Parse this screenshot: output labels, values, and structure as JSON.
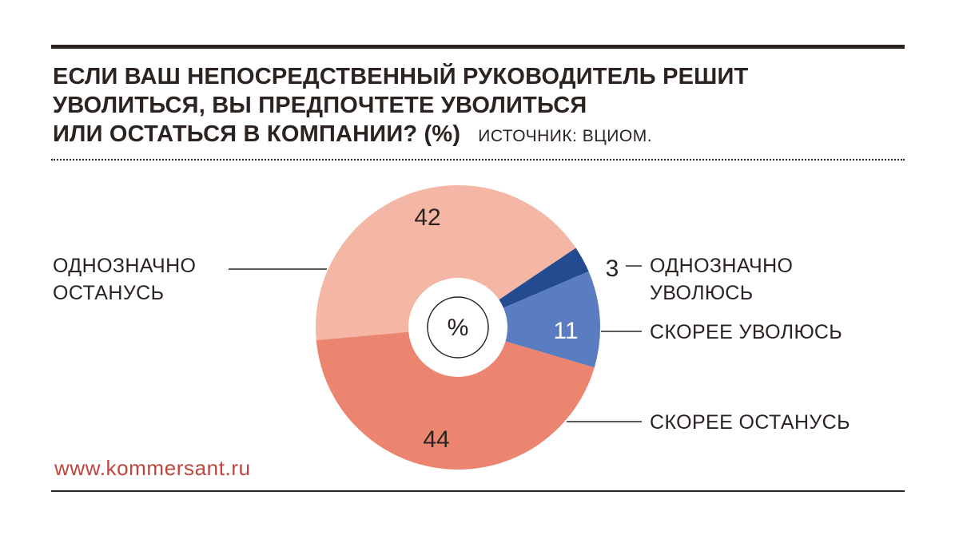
{
  "header": {
    "title_lines": [
      "ЕСЛИ ВАШ НЕПОСРЕДСТВЕННЫЙ РУКОВОДИТЕЛЬ РЕШИТ",
      "УВОЛИТЬСЯ, ВЫ ПРЕДПОЧТЕТЕ УВОЛИТЬСЯ",
      "ИЛИ ОСТАТЬСЯ В КОМПАНИИ? (%)"
    ],
    "source": "ИСТОЧНИК: ВЦИОМ."
  },
  "footer": {
    "url": "www.kommersant.ru"
  },
  "chart_data": {
    "type": "pie",
    "style": "donut",
    "center_label": "%",
    "legend": "none",
    "slices": [
      {
        "label_lines": [
          "ОДНОЗНАЧНО",
          "ОСТАНУСЬ"
        ],
        "value": 42,
        "value_label": "42",
        "color": "#f5b7a5"
      },
      {
        "label_lines": [
          "ОДНОЗНАЧНО",
          "УВОЛЮСЬ"
        ],
        "value": 3,
        "value_label": "3",
        "color": "#244a8f"
      },
      {
        "label_lines": [
          "СКОРЕЕ УВОЛЮСЬ"
        ],
        "value": 11,
        "value_label": "11",
        "color": "#5a7cc0"
      },
      {
        "label_lines": [
          "СКОРЕЕ ОСТАНУСЬ"
        ],
        "value": 44,
        "value_label": "44",
        "color": "#eb8570"
      }
    ]
  }
}
